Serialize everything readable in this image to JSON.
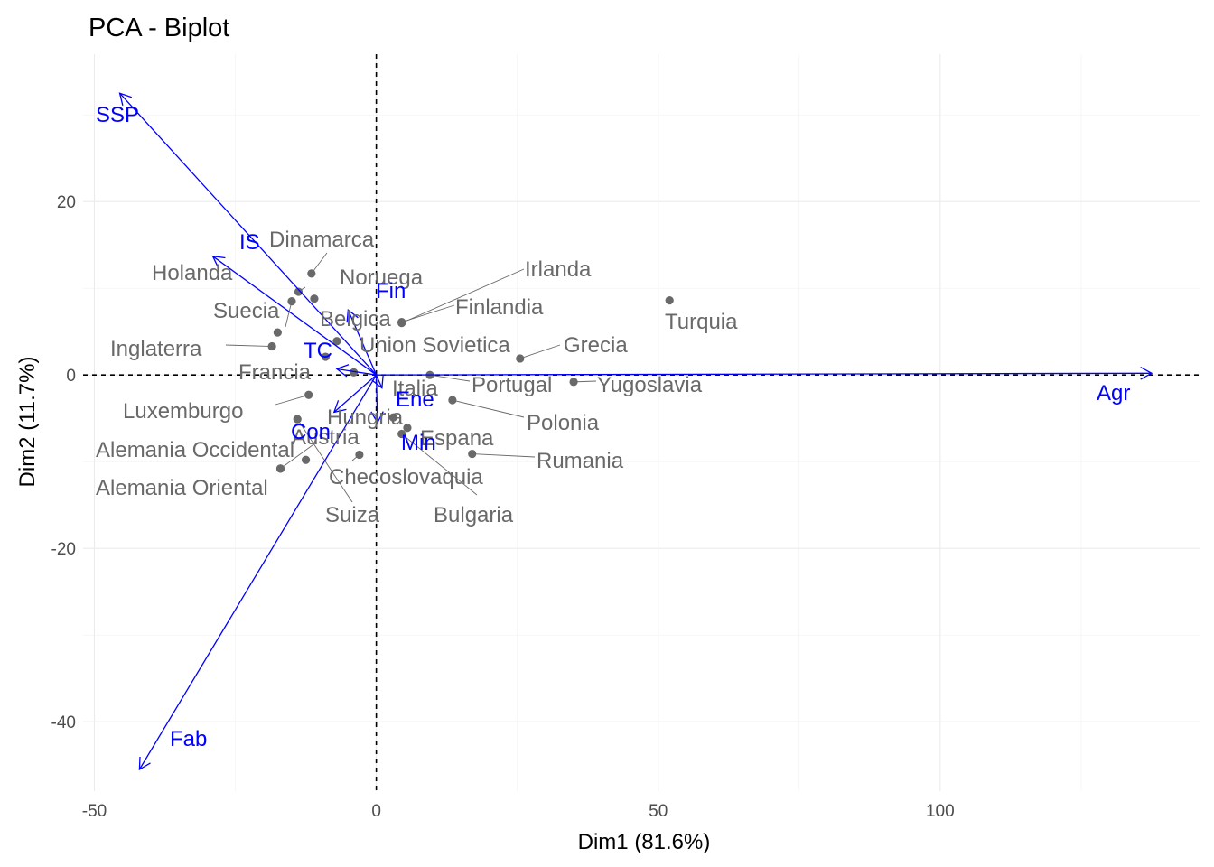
{
  "chart_data": {
    "type": "scatter",
    "title": "PCA - Biplot",
    "xlabel": "Dim1 (81.6%)",
    "ylabel": "Dim2 (11.7%)",
    "xlim": [
      -52,
      146
    ],
    "ylim": [
      -48,
      37
    ],
    "x_ticks": [
      -50,
      0,
      50,
      100
    ],
    "x_tick_labels": [
      "-50",
      "0",
      "50",
      "100"
    ],
    "y_ticks": [
      -40,
      -20,
      0,
      20
    ],
    "y_tick_labels": [
      "-40",
      "-20",
      "0",
      "20"
    ],
    "grid": true,
    "colors": {
      "individuals": "#696969",
      "variables": "#0000ff",
      "grid": "#ebebeb"
    },
    "individuals": [
      {
        "name": "Dinamarca",
        "x": -11.5,
        "y": 11.7
      },
      {
        "name": "Noruega",
        "x": -11,
        "y": 8.8
      },
      {
        "name": "Holanda",
        "x": -13.8,
        "y": 9.6
      },
      {
        "name": "Suecia",
        "x": -15,
        "y": 8.5
      },
      {
        "name": "Belgica",
        "x": -17.5,
        "y": 4.9
      },
      {
        "name": "Inglaterra",
        "x": -18.5,
        "y": 3.3
      },
      {
        "name": "Union Sovietica",
        "x": -7,
        "y": 3.9
      },
      {
        "name": "Francia",
        "x": -9,
        "y": 2.1
      },
      {
        "name": "Finlandia",
        "x": 4.5,
        "y": 6.1
      },
      {
        "name": "Irlanda",
        "x": 4.5,
        "y": 6.0
      },
      {
        "name": "Grecia",
        "x": 25.5,
        "y": 1.9
      },
      {
        "name": "Turquia",
        "x": 52,
        "y": 8.6
      },
      {
        "name": "Yugoslavia",
        "x": 35,
        "y": -0.8
      },
      {
        "name": "Portugal",
        "x": 9.5,
        "y": 0.0
      },
      {
        "name": "Italia",
        "x": -4,
        "y": 0.3
      },
      {
        "name": "Polonia",
        "x": 13.5,
        "y": -2.9
      },
      {
        "name": "Rumania",
        "x": 17,
        "y": -9.1
      },
      {
        "name": "Espana",
        "x": 5.5,
        "y": -6.1
      },
      {
        "name": "Bulgaria",
        "x": 4.5,
        "y": -6.8
      },
      {
        "name": "Hungria",
        "x": 3,
        "y": -4.9
      },
      {
        "name": "Checoslovaquia",
        "x": -3,
        "y": -9.2
      },
      {
        "name": "Austria",
        "x": -12.5,
        "y": -9.8
      },
      {
        "name": "Suiza",
        "x": -14,
        "y": -5.1
      },
      {
        "name": "Luxemburgo",
        "x": -12,
        "y": -2.3
      },
      {
        "name": "Alemania Occidental",
        "x": -17,
        "y": -10.8
      },
      {
        "name": "Alemania Oriental",
        "x": -17,
        "y": -10.8
      }
    ],
    "variables": [
      {
        "name": "Agr",
        "x": 137.5,
        "y": 0.2
      },
      {
        "name": "SSP",
        "x": -45.5,
        "y": 32.5
      },
      {
        "name": "IS",
        "x": -29,
        "y": 13.7
      },
      {
        "name": "Fab",
        "x": -42,
        "y": -45.5
      },
      {
        "name": "Fin",
        "x": -5,
        "y": 7.5
      },
      {
        "name": "TC",
        "x": -7,
        "y": 0.7
      },
      {
        "name": "Ene",
        "x": 0.2,
        "y": -5.5
      },
      {
        "name": "Con",
        "x": -7.5,
        "y": -4.3
      },
      {
        "name": "Min",
        "x": 1,
        "y": -1.5
      }
    ]
  }
}
